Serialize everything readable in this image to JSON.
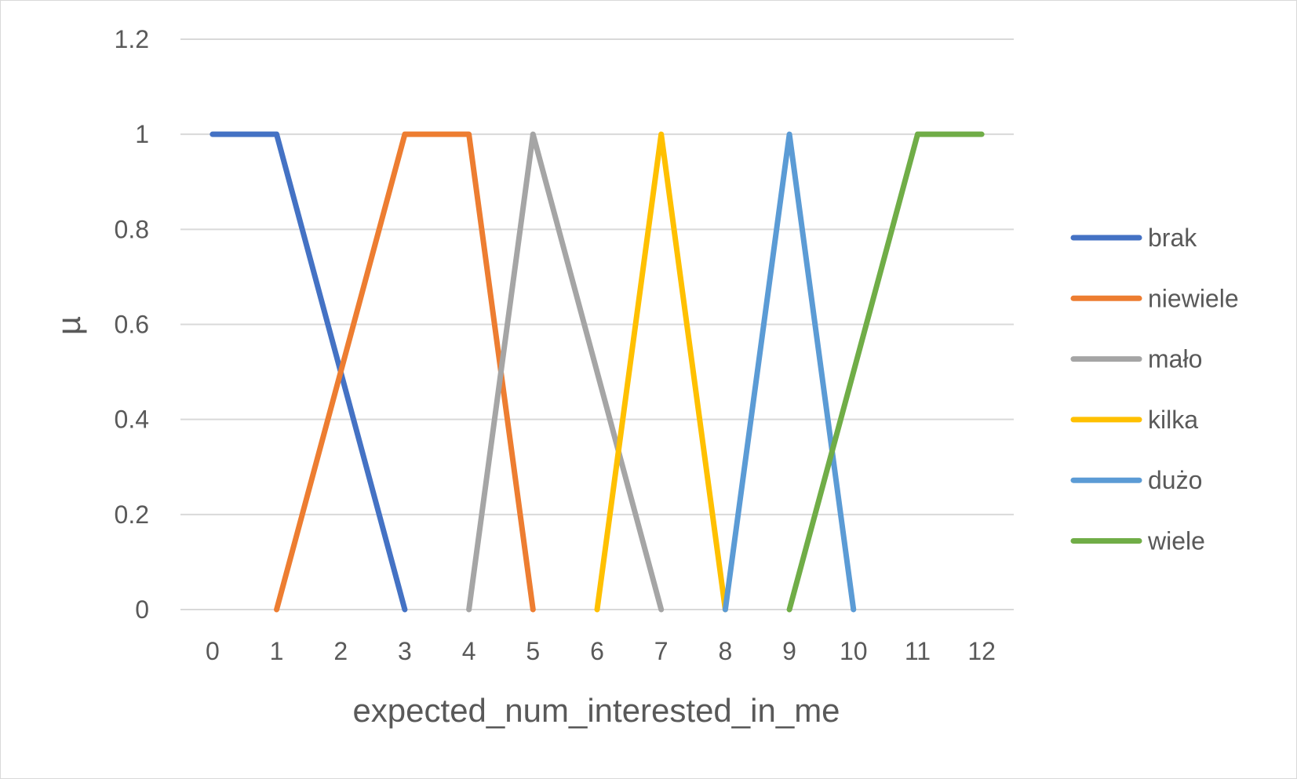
{
  "chart_data": {
    "type": "line",
    "title": "",
    "xlabel": "expected_num_interested_in_me",
    "ylabel": "µ",
    "categories": [
      "0",
      "1",
      "2",
      "3",
      "4",
      "5",
      "6",
      "7",
      "8",
      "9",
      "10",
      "11",
      "12"
    ],
    "ylim": [
      0,
      1.2
    ],
    "yticks": [
      "0",
      "0.2",
      "0.4",
      "0.6",
      "0.8",
      "1",
      "1.2"
    ],
    "grid": "horizontal",
    "legend_position": "right",
    "series": [
      {
        "name": "brak",
        "color": "#4472C4",
        "points": [
          [
            0,
            1
          ],
          [
            1,
            1
          ],
          [
            3,
            0
          ]
        ]
      },
      {
        "name": "niewiele",
        "color": "#ED7D31",
        "points": [
          [
            1,
            0
          ],
          [
            3,
            1
          ],
          [
            4,
            1
          ],
          [
            5,
            0
          ]
        ]
      },
      {
        "name": "mało",
        "color": "#A5A5A5",
        "points": [
          [
            4,
            0
          ],
          [
            5,
            1
          ],
          [
            7,
            0
          ]
        ]
      },
      {
        "name": "kilka",
        "color": "#FFC000",
        "points": [
          [
            6,
            0
          ],
          [
            7,
            1
          ],
          [
            8,
            0
          ]
        ]
      },
      {
        "name": "dużo",
        "color": "#5B9BD5",
        "points": [
          [
            8,
            0
          ],
          [
            9,
            1
          ],
          [
            10,
            0
          ]
        ]
      },
      {
        "name": "wiele",
        "color": "#70AD47",
        "points": [
          [
            9,
            0
          ],
          [
            11,
            1
          ],
          [
            12,
            1
          ]
        ]
      }
    ]
  }
}
